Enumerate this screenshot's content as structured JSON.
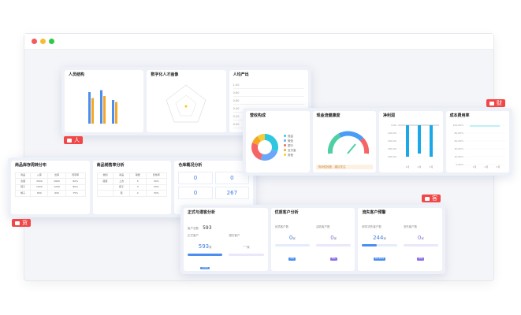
{
  "window": {
    "dots": [
      "#f35b5b",
      "#f5bd2f",
      "#2fc84a"
    ]
  },
  "tags": {
    "people": "人",
    "finance": "财",
    "goods": "货",
    "customers": "客"
  },
  "people": {
    "cards": [
      {
        "title": "人员结构"
      },
      {
        "title": "数字化人才画像"
      },
      {
        "title": "人均产出"
      }
    ],
    "bars": [
      [
        80,
        65
      ],
      [
        85,
        70
      ],
      [
        60,
        55
      ]
    ],
    "yticks": [
      "1.00",
      "0.80",
      "0.60",
      "0.40",
      "0.20",
      "0.00"
    ]
  },
  "finance": {
    "cards": [
      {
        "title": "营收构成",
        "legend": [
          "现金",
          "微信",
          "银行",
          "支付宝",
          "其他"
        ]
      },
      {
        "title": "现金流健康度",
        "note": "流动性较差，建议关注"
      },
      {
        "title": "净利润",
        "yticks": [
          "0.00",
          "-100.00",
          "-200.00",
          "-300.00",
          "-400.00"
        ],
        "xticks": [
          "1月",
          "2月",
          "3月"
        ]
      },
      {
        "title": "成本费用率",
        "yticks": [
          "100.00%",
          "80.00%",
          "60.00%",
          "40.00%",
          "20.00%",
          "0.00%"
        ],
        "xticks": [
          "1月",
          "2月",
          "3月"
        ]
      }
    ],
    "donut": [
      30,
      25,
      25,
      10,
      10
    ],
    "netprofit": [
      -400,
      -360,
      -400
    ]
  },
  "goods": {
    "cards": [
      {
        "title": "商品库存周转分布",
        "rows": [
          [
            "商品",
            "入库",
            "出库",
            "周转率"
          ],
          [
            "衣服",
            "3500",
            "2800",
            "80%"
          ],
          [
            "鞋子",
            "1500",
            "1200",
            "80%"
          ],
          [
            "帽子",
            "800",
            "600",
            "75%"
          ]
        ]
      },
      {
        "title": "商品销售率分析",
        "rows": [
          [
            "类别",
            "商品",
            "销量",
            "售罄率"
          ],
          [
            "服装",
            "上衣",
            "5",
            "50%"
          ],
          [
            "",
            "裤子",
            "3",
            "50%"
          ],
          [
            "",
            "鞋",
            "2",
            "50%"
          ]
        ]
      },
      {
        "title": "仓库概况分析",
        "stats": [
          "0",
          "0",
          "0",
          "267"
        ]
      }
    ]
  },
  "customers": {
    "cards": [
      {
        "title": "正式与潜客分析",
        "total_label": "客户总数",
        "total": "593",
        "left_label": "正式客户",
        "left_value": "593",
        "left_unit": "家",
        "left_badge": "100%",
        "right_label": "潜在客户",
        "right_value": "--",
        "right_unit": "家"
      },
      {
        "title": "优质客户分析",
        "left_label": "优质客户数",
        "left_value": "0",
        "left_unit": "家",
        "left_badge": "0%",
        "right_label": "活跃客户数",
        "right_value": "0",
        "right_unit": "家",
        "right_badge": "0%"
      },
      {
        "title": "流失客户预警",
        "left_label": "即将流失客户数",
        "left_value": "244",
        "left_unit": "家",
        "left_badge": "41.15%",
        "right_label": "流失客户数",
        "right_value": "0",
        "right_unit": "家",
        "right_badge": "0%"
      }
    ]
  }
}
